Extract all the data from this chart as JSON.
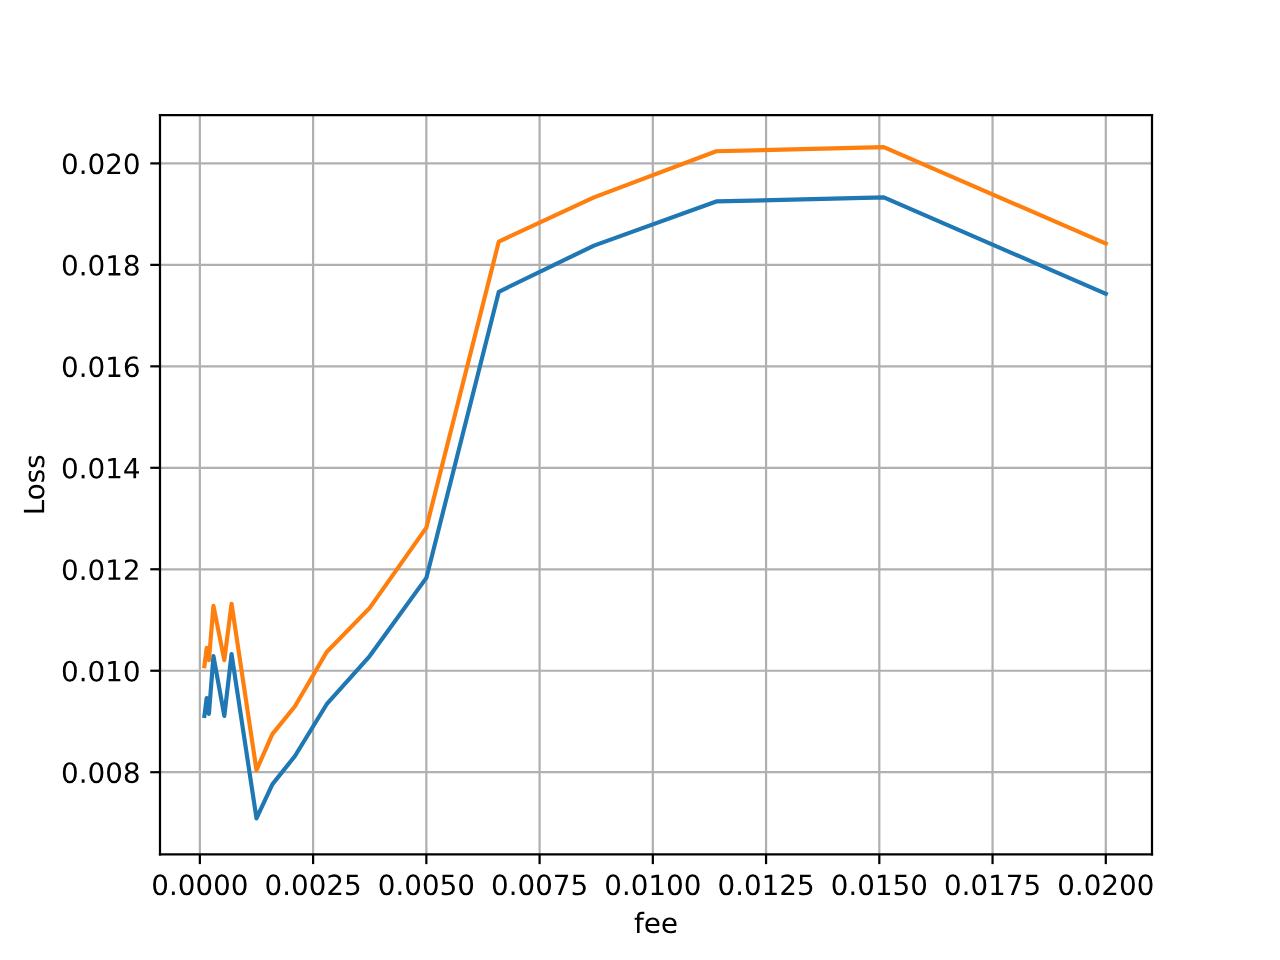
{
  "chart_data": {
    "type": "line",
    "xlabel": "fee",
    "ylabel": "Loss",
    "grid": true,
    "x": [
      0.0001,
      0.00015,
      0.0002,
      0.0003,
      0.00054,
      0.0007,
      0.00125,
      0.0016,
      0.0021,
      0.0028,
      0.00375,
      0.005,
      0.0066,
      0.0087,
      0.0114,
      0.0151,
      0.02
    ],
    "series": [
      {
        "color": "#1f77b4",
        "values": [
          0.00911,
          0.00946,
          0.00915,
          0.01029,
          0.00911,
          0.01033,
          0.00709,
          0.00776,
          0.00832,
          0.00934,
          0.01029,
          0.01183,
          0.01747,
          0.01838,
          0.01925,
          0.01933,
          0.01743
        ]
      },
      {
        "color": "#ff7f0e",
        "values": [
          0.01009,
          0.01045,
          0.01021,
          0.01128,
          0.01021,
          0.01132,
          0.00804,
          0.00875,
          0.0093,
          0.01037,
          0.01124,
          0.01282,
          0.01846,
          0.01933,
          0.02024,
          0.02032,
          0.01842
        ]
      }
    ],
    "xlim": [
      -0.00088,
      0.02102
    ],
    "ylim": [
      0.00638,
      0.02095
    ],
    "xticks": [
      {
        "value": 0,
        "label": "0.0000"
      },
      {
        "value": 0.0025,
        "label": "0.0025"
      },
      {
        "value": 0.005,
        "label": "0.0050"
      },
      {
        "value": 0.0075,
        "label": "0.0075"
      },
      {
        "value": 0.01,
        "label": "0.0100"
      },
      {
        "value": 0.0125,
        "label": "0.0125"
      },
      {
        "value": 0.015,
        "label": "0.0150"
      },
      {
        "value": 0.0175,
        "label": "0.0175"
      },
      {
        "value": 0.02,
        "label": "0.0200"
      }
    ],
    "yticks": [
      0.008,
      {
        "value": 0.01,
        "label": "0.010"
      },
      0.012,
      0.014,
      0.016,
      0.018,
      {
        "value": 0.02,
        "label": "0.020"
      }
    ]
  }
}
